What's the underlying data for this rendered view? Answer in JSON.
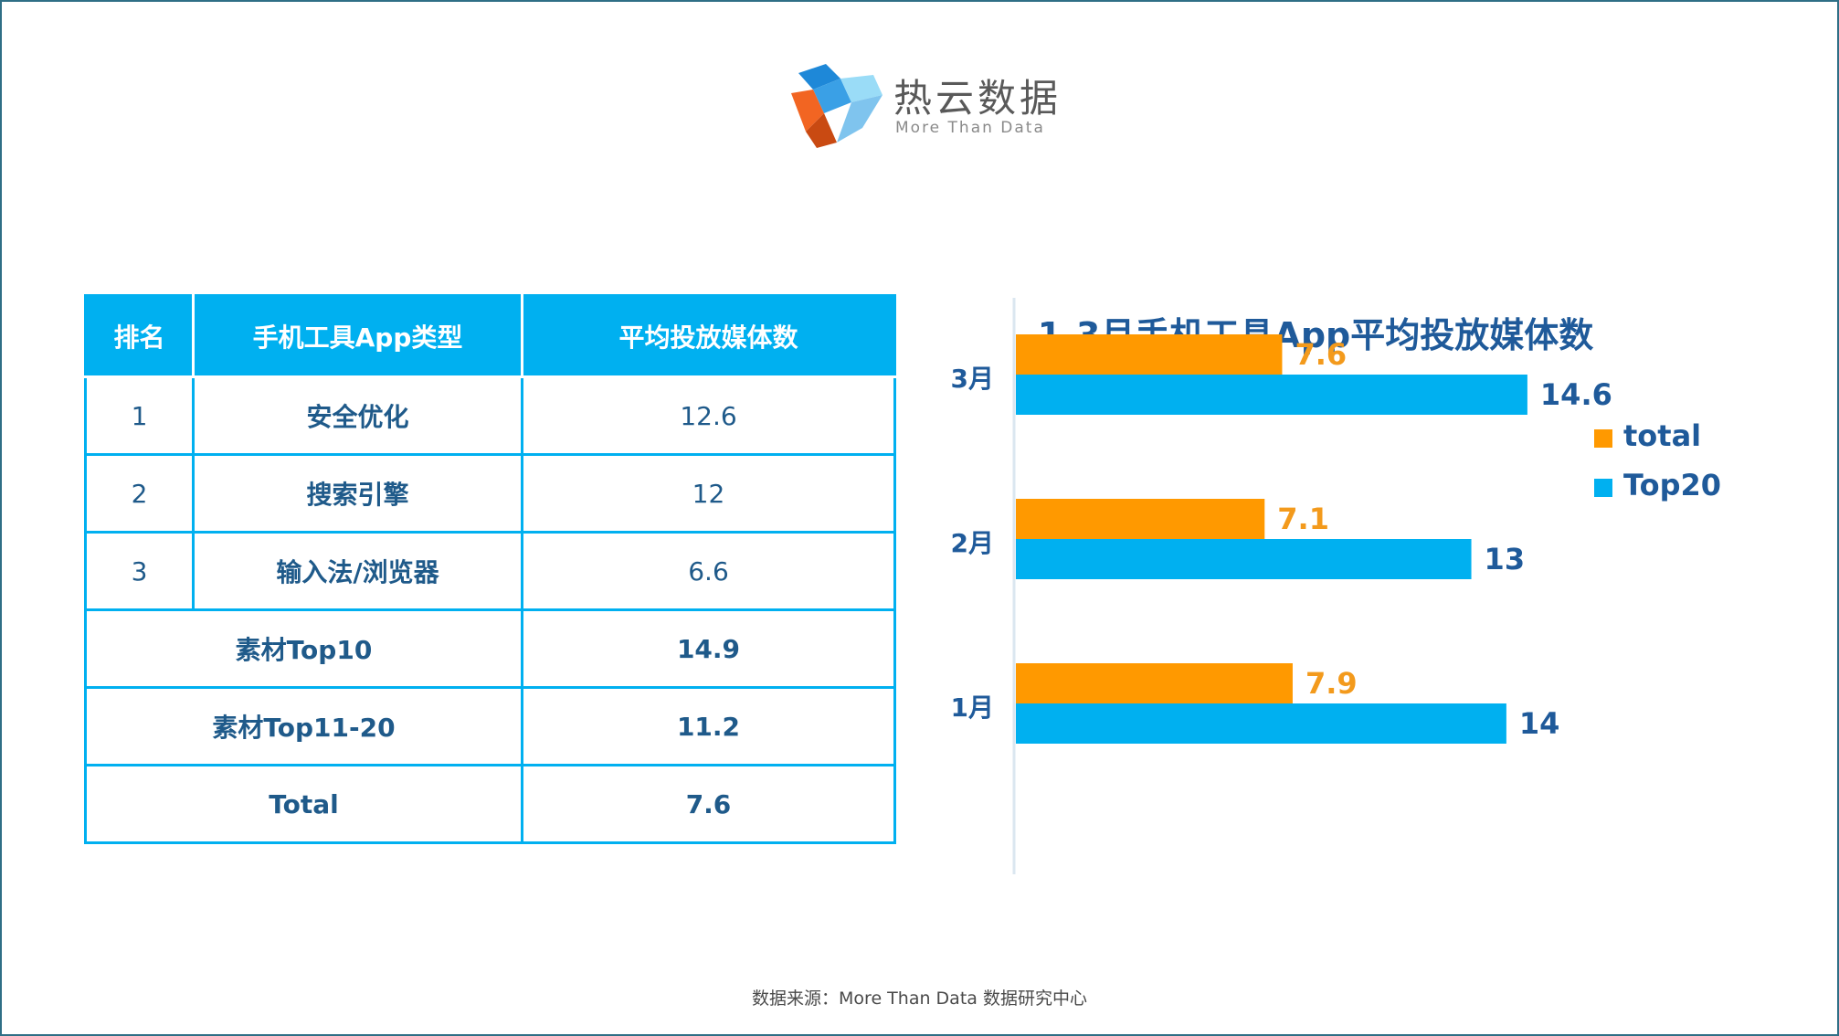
{
  "logo": {
    "name_cn": "热云数据",
    "tagline": "More Than Data",
    "colors": {
      "blue_dark": "#1e88d8",
      "blue_light": "#7fd0f5",
      "orange": "#f26522"
    }
  },
  "table": {
    "headers": [
      "排名",
      "手机工具App类型",
      "平均投放媒体数"
    ],
    "rows": [
      {
        "rank": "1",
        "type": "安全优化",
        "value": "12.6"
      },
      {
        "rank": "2",
        "type": "搜索引擎",
        "value": "12"
      },
      {
        "rank": "3",
        "type": "输入法/浏览器",
        "value": "6.6"
      }
    ],
    "summary": [
      {
        "label": "素材Top10",
        "value": "14.9"
      },
      {
        "label": "素材Top11-20",
        "value": "11.2"
      },
      {
        "label": "Total",
        "value": "7.6"
      }
    ],
    "accent": "#00b0f0"
  },
  "chart_data": {
    "type": "bar",
    "orientation": "horizontal",
    "title": "1-3月手机工具App平均投放媒体数",
    "categories": [
      "3月",
      "2月",
      "1月"
    ],
    "series": [
      {
        "name": "total",
        "values": [
          7.6,
          7.1,
          7.9
        ],
        "color": "#ff9900"
      },
      {
        "name": "Top20",
        "values": [
          14.6,
          13,
          14
        ],
        "color": "#00b0f0"
      }
    ],
    "xlim": [
      0,
      16
    ],
    "grid": false,
    "legend": "right"
  },
  "source": "数据来源：More Than Data 数据研究中心"
}
